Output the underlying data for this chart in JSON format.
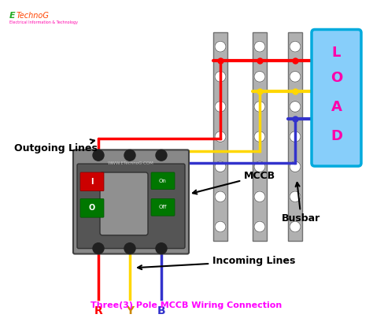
{
  "title": "Three(3) Pole MCCB Wiring Connection",
  "title_color": "#FF00FF",
  "bg_color": "#FFFFFF",
  "wire_red": "#FF0000",
  "wire_yellow": "#FFD700",
  "wire_blue": "#3333CC",
  "busbar_color": "#B0B0B0",
  "busbar_edge": "#707070",
  "mccb_body": "#888888",
  "mccb_dark": "#555555",
  "load_box_color": "#87CEFA",
  "load_text_color": "#FF00AA",
  "label_outgoing": "Outgoing Lines",
  "label_mccb": "MCCB",
  "label_incoming": "Incoming Lines",
  "label_busbar": "Busbar",
  "label_load": "LOAD",
  "label_R": "R",
  "label_Y": "Y",
  "label_B": "B",
  "watermark": "WWW.ETechnoG.COM",
  "etechnog_e_color": "#22AA22",
  "etechnog_text_color": "#FF4400",
  "lw": 2.5
}
